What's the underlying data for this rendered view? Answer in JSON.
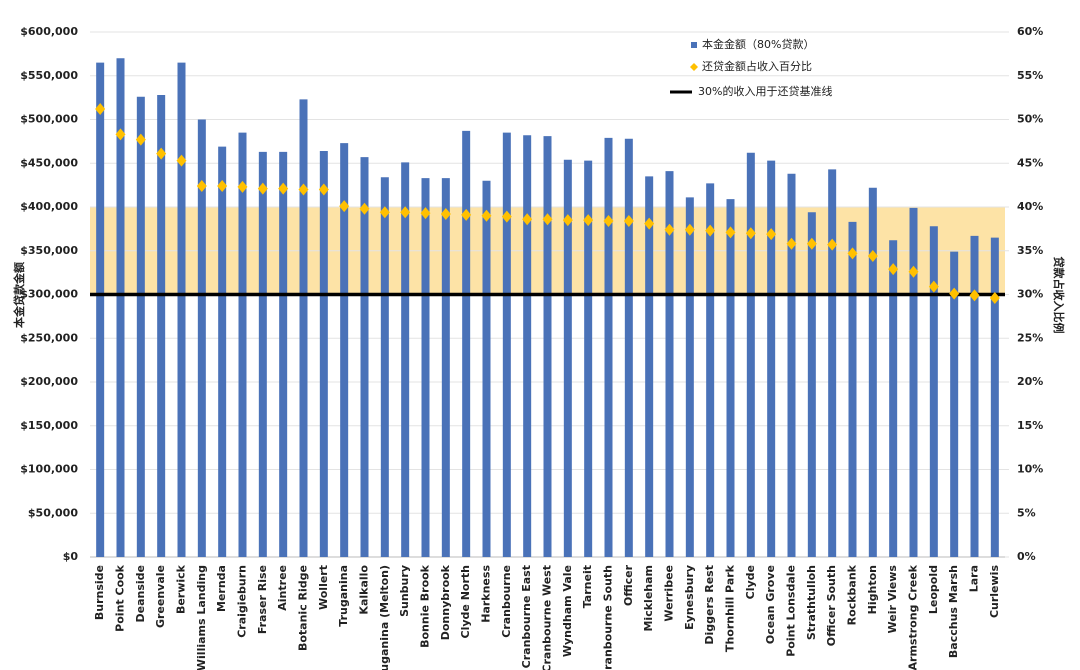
{
  "chart_data": {
    "type": "bar",
    "y_label": "本金贷款金额",
    "y2_label": "贷款占收入比例",
    "categories": [
      "Burnside",
      "Point Cook",
      "Deanside",
      "Greenvale",
      "Berwick",
      "Williams Landing",
      "Mernda",
      "Craigieburn",
      "Fraser Rise",
      "Aintree",
      "Botanic Ridge",
      "Wollert",
      "Truganina",
      "Kalkallo",
      "Truganina (Melton)",
      "Sunbury",
      "Bonnie Brook",
      "Donnybrook",
      "Clyde North",
      "Harkness",
      "Cranbourne",
      "Cranbourne East",
      "Cranbourne West",
      "Wyndham Vale",
      "Tarneit",
      "Cranbourne South",
      "Officer",
      "Mickleham",
      "Werribee",
      "Eynesbury",
      "Diggers Rest",
      "Thornhill Park",
      "Clyde",
      "Ocean Grove",
      "Point Lonsdale",
      "Strathtulloh",
      "Officer South",
      "Rockbank",
      "Highton",
      "Weir Views",
      "Armstrong Creek",
      "Leopold",
      "Bacchus Marsh",
      "Lara",
      "Curlewis"
    ],
    "series": [
      {
        "name": "本金金额（80%贷款）",
        "type": "bar",
        "axis": "y",
        "color": "#4a72b8",
        "values": [
          565000,
          570000,
          526000,
          528000,
          565000,
          500000,
          469000,
          485000,
          463000,
          463000,
          523000,
          464000,
          473000,
          457000,
          434000,
          451000,
          433000,
          433000,
          487000,
          430000,
          485000,
          482000,
          481000,
          454000,
          453000,
          479000,
          478000,
          435000,
          441000,
          411000,
          427000,
          409000,
          462000,
          453000,
          438000,
          394000,
          443000,
          383000,
          422000,
          362000,
          399000,
          378000,
          349000,
          367000,
          365000
        ]
      },
      {
        "name": "还贷金额占收入百分比",
        "type": "marker",
        "axis": "y2",
        "color": "#ffc000",
        "values": [
          51.2,
          48.3,
          47.7,
          46.1,
          45.3,
          42.4,
          42.4,
          42.3,
          42.1,
          42.1,
          42.0,
          42.0,
          40.1,
          39.8,
          39.4,
          39.4,
          39.3,
          39.2,
          39.1,
          39.0,
          38.9,
          38.6,
          38.6,
          38.5,
          38.5,
          38.4,
          38.4,
          38.1,
          37.4,
          37.4,
          37.3,
          37.1,
          37.0,
          36.9,
          35.8,
          35.8,
          35.7,
          34.7,
          34.4,
          32.9,
          32.6,
          30.9,
          30.1,
          29.9,
          29.6
        ]
      }
    ],
    "reference_line": {
      "name": "30%的收入用于还贷基准线",
      "value": 30,
      "axis": "y2",
      "color": "#000000"
    },
    "shaded_band": {
      "range": [
        30,
        40
      ],
      "axis": "y2",
      "color": "#fde3a6"
    },
    "ylim": [
      0,
      600000
    ],
    "yticks": [
      {
        "value": 0,
        "label": "$0"
      },
      {
        "value": 50000,
        "label": "$50,000"
      },
      {
        "value": 100000,
        "label": "$100,000"
      },
      {
        "value": 150000,
        "label": "$150,000"
      },
      {
        "value": 200000,
        "label": "$200,000"
      },
      {
        "value": 250000,
        "label": "$250,000"
      },
      {
        "value": 300000,
        "label": "$300,000"
      },
      {
        "value": 350000,
        "label": "$350,000"
      },
      {
        "value": 400000,
        "label": "$400,000"
      },
      {
        "value": 450000,
        "label": "$450,000"
      },
      {
        "value": 500000,
        "label": "$500,000"
      },
      {
        "value": 550000,
        "label": "$550,000"
      },
      {
        "value": 600000,
        "label": "$600,000"
      }
    ],
    "y2lim": [
      0,
      60
    ],
    "y2ticks": [
      {
        "value": 0,
        "label": "0%"
      },
      {
        "value": 5,
        "label": "5%"
      },
      {
        "value": 10,
        "label": "10%"
      },
      {
        "value": 15,
        "label": "15%"
      },
      {
        "value": 20,
        "label": "20%"
      },
      {
        "value": 25,
        "label": "25%"
      },
      {
        "value": 30,
        "label": "30%"
      },
      {
        "value": 35,
        "label": "35%"
      },
      {
        "value": 40,
        "label": "40%"
      },
      {
        "value": 45,
        "label": "45%"
      },
      {
        "value": 50,
        "label": "50%"
      },
      {
        "value": 55,
        "label": "55%"
      },
      {
        "value": 60,
        "label": "60%"
      }
    ],
    "grid": true
  }
}
